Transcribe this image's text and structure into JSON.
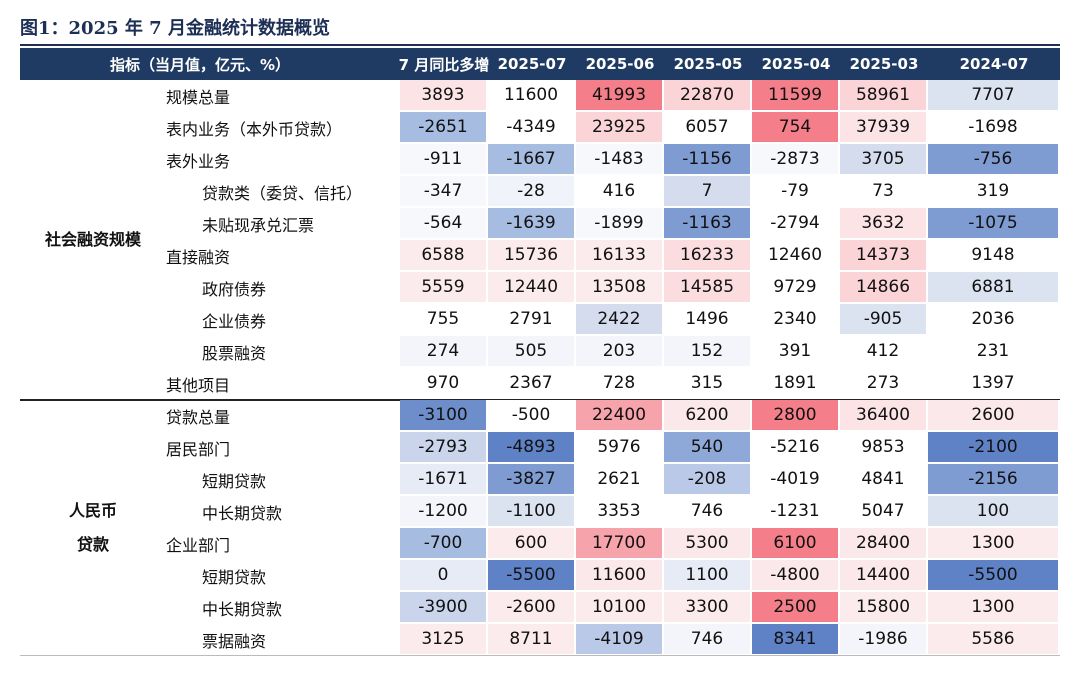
{
  "title": "图1：2025 年 7 月金融统计数据概览",
  "columns": [
    "指标（当月值，亿元、%）",
    "7 月同比多增",
    "2025-07",
    "2025-06",
    "2025-05",
    "2025-04",
    "2025-03",
    "2024-07"
  ],
  "groups": [
    {
      "name_lines": [
        "社会融资规模"
      ],
      "rows": [
        {
          "label": "规模总量",
          "indent": 0,
          "values": [
            "3893",
            "11600",
            "41993",
            "22870",
            "11599",
            "58961",
            "7707"
          ],
          "colors": [
            "#fbe3e6",
            "#ffffff",
            "#f47f8a",
            "#fbd4d8",
            "#f47f8a",
            "#fbd4d8",
            "#dbe3f1"
          ]
        },
        {
          "label": "表内业务（本外币贷款）",
          "indent": 0,
          "values": [
            "-2651",
            "-4349",
            "23925",
            "6057",
            "754",
            "37939",
            "-1698"
          ],
          "colors": [
            "#a6bce0",
            "#ffffff",
            "#fbd4d8",
            "#ffffff",
            "#f47f8a",
            "#fbe3e6",
            "#ffffff"
          ]
        },
        {
          "label": "表外业务",
          "indent": 0,
          "values": [
            "-911",
            "-1667",
            "-1483",
            "-1156",
            "-2873",
            "3705",
            "-756"
          ],
          "colors": [
            "#f7f8fc",
            "#a6bce0",
            "#f7f8fc",
            "#7e9bd2",
            "#f7f8fc",
            "#d5dcee",
            "#7e9bd2"
          ]
        },
        {
          "label": "贷款类（委贷、信托）",
          "indent": 1,
          "values": [
            "-347",
            "-28",
            "416",
            "7",
            "-79",
            "73",
            "319"
          ],
          "colors": [
            "#f7f8fc",
            "#f0f3fa",
            "#ffffff",
            "#d5dcee",
            "#ffffff",
            "#ffffff",
            "#ffffff"
          ]
        },
        {
          "label": "未贴现承兑汇票",
          "indent": 1,
          "values": [
            "-564",
            "-1639",
            "-1899",
            "-1163",
            "-2794",
            "3632",
            "-1075"
          ],
          "colors": [
            "#f7f8fc",
            "#a6bce0",
            "#f7f8fc",
            "#7e9bd2",
            "#ffffff",
            "#fbe3e6",
            "#7e9bd2"
          ]
        },
        {
          "label": "直接融资",
          "indent": 0,
          "values": [
            "6588",
            "15736",
            "16133",
            "16233",
            "12460",
            "14373",
            "9148"
          ],
          "colors": [
            "#fcebed",
            "#fcebed",
            "#fcebed",
            "#fbdde0",
            "#ffffff",
            "#fbd4d8",
            "#ffffff"
          ]
        },
        {
          "label": "政府债券",
          "indent": 1,
          "values": [
            "5559",
            "12440",
            "13508",
            "14585",
            "9729",
            "14866",
            "6881"
          ],
          "colors": [
            "#fcebed",
            "#fcebed",
            "#fcebed",
            "#fbdde0",
            "#ffffff",
            "#fbd4d8",
            "#dbe3f1"
          ]
        },
        {
          "label": "企业债券",
          "indent": 1,
          "values": [
            "755",
            "2791",
            "2422",
            "1496",
            "2340",
            "-905",
            "2036"
          ],
          "colors": [
            "#ffffff",
            "#ffffff",
            "#d5dcee",
            "#ffffff",
            "#ffffff",
            "#dbe3f1",
            "#ffffff"
          ]
        },
        {
          "label": "股票融资",
          "indent": 1,
          "values": [
            "274",
            "505",
            "203",
            "152",
            "391",
            "412",
            "231"
          ],
          "colors": [
            "#f3f5fa",
            "#f3f5fa",
            "#f3f5fa",
            "#f3f5fa",
            "#ffffff",
            "#ffffff",
            "#ffffff"
          ]
        },
        {
          "label": "其他项目",
          "indent": 0,
          "values": [
            "970",
            "2367",
            "728",
            "315",
            "1891",
            "273",
            "1397"
          ],
          "colors": [
            "#ffffff",
            "#ffffff",
            "#ffffff",
            "#ffffff",
            "#ffffff",
            "#ffffff",
            "#ffffff"
          ]
        }
      ]
    },
    {
      "name_lines": [
        "人民币",
        "贷款"
      ],
      "rows": [
        {
          "label": "贷款总量",
          "indent": 0,
          "values": [
            "-3100",
            "-500",
            "22400",
            "6200",
            "2800",
            "36400",
            "2600"
          ],
          "colors": [
            "#6d8dcb",
            "#ffffff",
            "#f7a3ab",
            "#fbe8ea",
            "#f47f8a",
            "#fbe3e6",
            "#fbe8ea"
          ]
        },
        {
          "label": "居民部门",
          "indent": 0,
          "values": [
            "-2793",
            "-4893",
            "5976",
            "540",
            "-5216",
            "9853",
            "-2100"
          ],
          "colors": [
            "#cad5ec",
            "#5f82c6",
            "#ffffff",
            "#8ea8d8",
            "#ffffff",
            "#ffffff",
            "#5f82c6"
          ]
        },
        {
          "label": "短期贷款",
          "indent": 1,
          "values": [
            "-1671",
            "-3827",
            "2621",
            "-208",
            "-4019",
            "4841",
            "-2156"
          ],
          "colors": [
            "#e6ebf6",
            "#7e9bd2",
            "#ffffff",
            "#b9c9e7",
            "#ffffff",
            "#ffffff",
            "#7e9bd2"
          ]
        },
        {
          "label": "中长期贷款",
          "indent": 1,
          "values": [
            "-1200",
            "-1100",
            "3353",
            "746",
            "-1231",
            "5047",
            "100"
          ],
          "colors": [
            "#f3f5fa",
            "#dbe3f1",
            "#ffffff",
            "#ffffff",
            "#ffffff",
            "#ffffff",
            "#dbe3f1"
          ]
        },
        {
          "label": "企业部门",
          "indent": 0,
          "values": [
            "-700",
            "600",
            "17700",
            "5300",
            "6100",
            "28400",
            "1300"
          ],
          "colors": [
            "#a6bce0",
            "#fcebed",
            "#f7a3ab",
            "#fbe8ea",
            "#f47f8a",
            "#fbe8ea",
            "#fcebed"
          ]
        },
        {
          "label": "短期贷款",
          "indent": 1,
          "values": [
            "0",
            "-5500",
            "11600",
            "1100",
            "-4800",
            "14400",
            "-5500"
          ],
          "colors": [
            "#e6ebf6",
            "#5f82c6",
            "#fbe8ea",
            "#e6ebf6",
            "#fbe8ea",
            "#fbe8ea",
            "#5f82c6"
          ]
        },
        {
          "label": "中长期贷款",
          "indent": 1,
          "values": [
            "-3900",
            "-2600",
            "10100",
            "3300",
            "2500",
            "15800",
            "1300"
          ],
          "colors": [
            "#cad5ec",
            "#fcebed",
            "#fcebed",
            "#fcebed",
            "#f47f8a",
            "#fcebed",
            "#fcebed"
          ]
        },
        {
          "label": "票据融资",
          "indent": 1,
          "values": [
            "3125",
            "8711",
            "-4109",
            "746",
            "8341",
            "-1986",
            "5586"
          ],
          "colors": [
            "#fcebed",
            "#fcebed",
            "#b9c9e7",
            "#f3f5fa",
            "#5f82c6",
            "#f3f5fa",
            "#fcebed"
          ]
        }
      ]
    }
  ]
}
